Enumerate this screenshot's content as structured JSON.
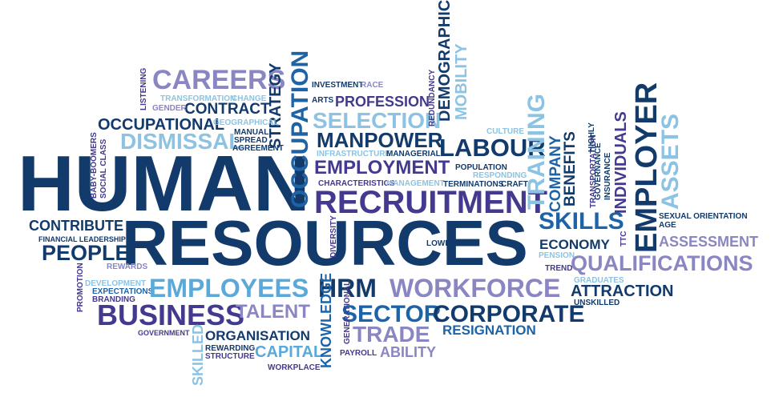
{
  "colors": {
    "navy": "#123a6b",
    "blue": "#1d63a6",
    "light": "#5aa9d8",
    "pale": "#8cc3e3",
    "purple": "#433a8f",
    "lavender": "#8a86c2"
  },
  "words": [
    {
      "id": "human",
      "text": "HUMAN"
    },
    {
      "id": "resources",
      "text": "RESOURCES"
    },
    {
      "id": "careers",
      "text": "CAREERS"
    },
    {
      "id": "occupational",
      "text": "OCCUPATIONAL"
    },
    {
      "id": "dismissal",
      "text": "DISMISSAL"
    },
    {
      "id": "contract",
      "text": "CONTRACT"
    },
    {
      "id": "strategy",
      "text": "STRATEGY"
    },
    {
      "id": "occupation",
      "text": "OCCUPATION"
    },
    {
      "id": "demographics",
      "text": "DEMOGRAPHICS"
    },
    {
      "id": "mobility",
      "text": "MOBILITY"
    },
    {
      "id": "profession",
      "text": "PROFESSION"
    },
    {
      "id": "selection",
      "text": "SELECTION"
    },
    {
      "id": "manpower",
      "text": "MANPOWER"
    },
    {
      "id": "labour",
      "text": "LABOUR"
    },
    {
      "id": "employment",
      "text": "EMPLOYMENT"
    },
    {
      "id": "recruitment",
      "text": "RECRUITMENT"
    },
    {
      "id": "training",
      "text": "TRAINING"
    },
    {
      "id": "company",
      "text": "COMPANY"
    },
    {
      "id": "benefits",
      "text": "BENEFITS"
    },
    {
      "id": "individuals",
      "text": "INDIVIDUALS"
    },
    {
      "id": "employer",
      "text": "EMPLOYER"
    },
    {
      "id": "assets",
      "text": "ASSETS"
    },
    {
      "id": "skills",
      "text": "SKILLS"
    },
    {
      "id": "economy",
      "text": "ECONOMY"
    },
    {
      "id": "assessment",
      "text": "ASSESSMENT"
    },
    {
      "id": "qualifications",
      "text": "QUALIFICATIONS"
    },
    {
      "id": "contribute",
      "text": "CONTRIBUTE"
    },
    {
      "id": "people",
      "text": "PEOPLE"
    },
    {
      "id": "employees",
      "text": "EMPLOYEES"
    },
    {
      "id": "hrm",
      "text": "HRM"
    },
    {
      "id": "workforce",
      "text": "WORKFORCE"
    },
    {
      "id": "attraction",
      "text": "ATTRACTION"
    },
    {
      "id": "business",
      "text": "BUSINESS"
    },
    {
      "id": "talent",
      "text": "TALENT"
    },
    {
      "id": "sector",
      "text": "SECTOR"
    },
    {
      "id": "corporate",
      "text": "CORPORATE"
    },
    {
      "id": "trade",
      "text": "TRADE"
    },
    {
      "id": "resignation",
      "text": "RESIGNATION"
    },
    {
      "id": "organisation",
      "text": "ORGANISATION"
    },
    {
      "id": "capital",
      "text": "CAPITAL"
    },
    {
      "id": "ability",
      "text": "ABILITY"
    },
    {
      "id": "knowledge",
      "text": "KNOWLEDGE"
    },
    {
      "id": "skilled",
      "text": "SKILLED"
    },
    {
      "id": "investment",
      "text": "INVESTMENT"
    },
    {
      "id": "race",
      "text": "RACE"
    },
    {
      "id": "arts",
      "text": "ARTS"
    },
    {
      "id": "redundancy",
      "text": "REDUNDANCY"
    },
    {
      "id": "listening",
      "text": "LISTENING"
    },
    {
      "id": "transformation",
      "text": "TRANSFORMATION"
    },
    {
      "id": "change",
      "text": "CHANGE"
    },
    {
      "id": "gender",
      "text": "GENDER"
    },
    {
      "id": "geographical",
      "text": "GEOGRAPHICAL"
    },
    {
      "id": "manual",
      "text": "MANUAL"
    },
    {
      "id": "spread",
      "text": "SPREAD"
    },
    {
      "id": "agreement",
      "text": "AGREEMENT"
    },
    {
      "id": "baby_boomers",
      "text": "BABY-BOOMERS"
    },
    {
      "id": "social_class",
      "text": "SOCIAL CLASS"
    },
    {
      "id": "infrastructure",
      "text": "INFRASTRUCTURE"
    },
    {
      "id": "managerial",
      "text": "MANAGERIAL"
    },
    {
      "id": "culture",
      "text": "CULTURE"
    },
    {
      "id": "population",
      "text": "POPULATION"
    },
    {
      "id": "responding",
      "text": "RESPONDING"
    },
    {
      "id": "characteristics",
      "text": "CHARACTERISTICS"
    },
    {
      "id": "management",
      "text": "MANAGEMENT"
    },
    {
      "id": "terminations",
      "text": "TERMINATIONS"
    },
    {
      "id": "craft",
      "text": "CRAFT"
    },
    {
      "id": "transportation",
      "text": "TRANSPORTATION"
    },
    {
      "id": "highly",
      "text": "HIGHLY"
    },
    {
      "id": "governance",
      "text": "GOVERNANCE"
    },
    {
      "id": "insurance",
      "text": "INSURANCE"
    },
    {
      "id": "ttc",
      "text": "TTC"
    },
    {
      "id": "sexual_orientation",
      "text": "SEXUAL ORIENTATION"
    },
    {
      "id": "age",
      "text": "AGE"
    },
    {
      "id": "financial_leadership",
      "text": "FINANCIAL LEADERSHIP"
    },
    {
      "id": "diversity",
      "text": "DIVERSITY"
    },
    {
      "id": "lower",
      "text": "LOWER"
    },
    {
      "id": "pension",
      "text": "PENSION"
    },
    {
      "id": "trend",
      "text": "TREND"
    },
    {
      "id": "rewards",
      "text": "REWARDS"
    },
    {
      "id": "development",
      "text": "DEVELOPMENT"
    },
    {
      "id": "expectations",
      "text": "EXPECTATIONS"
    },
    {
      "id": "branding",
      "text": "BRANDING"
    },
    {
      "id": "promotion",
      "text": "PROMOTION"
    },
    {
      "id": "graduates",
      "text": "GRADUATES"
    },
    {
      "id": "unskilled",
      "text": "UNSKILLED"
    },
    {
      "id": "government",
      "text": "GOVERNMENT"
    },
    {
      "id": "rewarding",
      "text": "REWARDING"
    },
    {
      "id": "structure",
      "text": "STRUCTURE"
    },
    {
      "id": "workplace",
      "text": "WORKPLACE"
    },
    {
      "id": "generational",
      "text": "GENERATIONAL"
    },
    {
      "id": "payroll",
      "text": "PAYROLL"
    }
  ]
}
